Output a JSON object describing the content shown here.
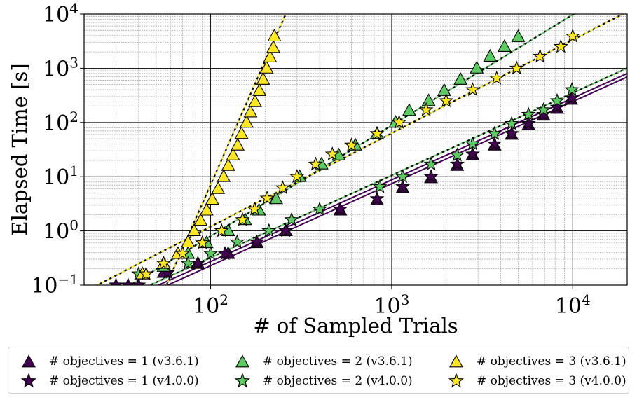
{
  "colors": {
    "obj1": "#440154",
    "obj2": "#5ec962",
    "obj3": "#fde725",
    "edge": "#000000"
  },
  "chart_data": {
    "type": "scatter",
    "x_scale": "log",
    "y_scale": "log",
    "xlabel": "# of Sampled Trials",
    "ylabel": "Elapsed Time [s]",
    "xlim": [
      20,
      20000
    ],
    "ylim": [
      0.1,
      10000
    ],
    "x_ticks": [
      {
        "value": 100,
        "base": "10",
        "exp": "2"
      },
      {
        "value": 1000,
        "base": "10",
        "exp": "3"
      },
      {
        "value": 10000,
        "base": "10",
        "exp": "4"
      }
    ],
    "y_ticks": [
      {
        "value": 0.1,
        "base": "10",
        "exp": "−1"
      },
      {
        "value": 1,
        "base": "10",
        "exp": "0"
      },
      {
        "value": 10,
        "base": "10",
        "exp": "1"
      },
      {
        "value": 100,
        "base": "10",
        "exp": "2"
      },
      {
        "value": 1000,
        "base": "10",
        "exp": "3"
      },
      {
        "value": 10000,
        "base": "10",
        "exp": "4"
      }
    ],
    "grid": true,
    "legend_position": "bottom",
    "series": [
      {
        "name": "# objectives = 1 (v3.6.1)",
        "marker": "triangle",
        "color_key": "obj1",
        "fit_line": "solid",
        "points": [
          [
            55,
            0.17
          ],
          [
            85,
            0.25
          ],
          [
            125,
            0.38
          ],
          [
            180,
            0.6
          ],
          [
            260,
            1.0
          ],
          [
            520,
            2.4
          ],
          [
            830,
            3.7
          ],
          [
            1150,
            6.2
          ],
          [
            1650,
            9.5
          ],
          [
            2300,
            16
          ],
          [
            2800,
            25
          ],
          [
            3700,
            38
          ],
          [
            4600,
            60
          ],
          [
            5700,
            90
          ],
          [
            6900,
            135
          ],
          [
            8200,
            180
          ],
          [
            9800,
            265
          ]
        ],
        "fit": [
          [
            20,
            0.02
          ],
          [
            20000,
            690
          ]
        ]
      },
      {
        "name": "# objectives = 1 (v4.0.0)",
        "marker": "star",
        "color_key": "obj1",
        "fit_line": "solid",
        "points": [
          [
            30,
            0.1
          ],
          [
            35,
            0.1
          ],
          [
            40,
            0.1
          ],
          [
            58,
            0.17
          ],
          [
            85,
            0.25
          ],
          [
            120,
            0.38
          ],
          [
            180,
            0.62
          ],
          [
            260,
            1.0
          ],
          [
            520,
            2.5
          ],
          [
            830,
            3.9
          ],
          [
            1150,
            6.5
          ],
          [
            1650,
            10
          ],
          [
            2300,
            17
          ],
          [
            2800,
            26
          ],
          [
            3700,
            40
          ],
          [
            4600,
            62
          ],
          [
            5700,
            95
          ],
          [
            6900,
            140
          ],
          [
            8200,
            190
          ],
          [
            9900,
            280
          ]
        ],
        "fit": [
          [
            20,
            0.024
          ],
          [
            20000,
            800
          ]
        ]
      },
      {
        "name": "# objectives = 2 (v3.6.1)",
        "marker": "triangle",
        "color_key": "obj2",
        "fit_line": "dashed",
        "points": [
          [
            42,
            0.16
          ],
          [
            55,
            0.22
          ],
          [
            75,
            0.38
          ],
          [
            95,
            0.6
          ],
          [
            125,
            1.0
          ],
          [
            155,
            1.6
          ],
          [
            185,
            2.4
          ],
          [
            230,
            3.9
          ],
          [
            310,
            10
          ],
          [
            410,
            17
          ],
          [
            510,
            25
          ],
          [
            630,
            38
          ],
          [
            830,
            62
          ],
          [
            1050,
            100
          ],
          [
            1250,
            165
          ],
          [
            1600,
            250
          ],
          [
            1950,
            385
          ],
          [
            2400,
            620
          ],
          [
            2950,
            1000
          ],
          [
            3500,
            1650
          ],
          [
            4200,
            2500
          ],
          [
            5000,
            3800
          ]
        ],
        "fit": [
          [
            20,
            0.03
          ],
          [
            20000,
            40000
          ]
        ]
      },
      {
        "name": "# objectives = 2 (v4.0.0)",
        "marker": "star",
        "color_key": "obj2",
        "fit_line": "dashed",
        "points": [
          [
            40,
            0.16
          ],
          [
            75,
            0.25
          ],
          [
            100,
            0.38
          ],
          [
            140,
            0.62
          ],
          [
            210,
            1.0
          ],
          [
            280,
            1.6
          ],
          [
            400,
            2.5
          ],
          [
            860,
            6.5
          ],
          [
            1150,
            10
          ],
          [
            1650,
            17
          ],
          [
            2300,
            25
          ],
          [
            2800,
            40
          ],
          [
            3700,
            62
          ],
          [
            4600,
            95
          ],
          [
            5700,
            140
          ],
          [
            6900,
            170
          ],
          [
            8200,
            250
          ],
          [
            9900,
            400
          ]
        ],
        "fit": [
          [
            20,
            0.028
          ],
          [
            20000,
            1000
          ]
        ]
      },
      {
        "name": "# objectives = 3 (v3.6.1)",
        "marker": "triangle",
        "color_key": "obj3",
        "fit_line": "dashed",
        "points": [
          [
            42,
            0.16
          ],
          [
            55,
            0.25
          ],
          [
            66,
            0.38
          ],
          [
            75,
            0.62
          ],
          [
            81,
            1.0
          ],
          [
            88,
            1.55
          ],
          [
            95,
            2.4
          ],
          [
            102,
            3.8
          ],
          [
            110,
            6.0
          ],
          [
            118,
            10
          ],
          [
            125,
            16
          ],
          [
            133,
            25
          ],
          [
            141,
            38
          ],
          [
            148,
            62
          ],
          [
            158,
            100
          ],
          [
            166,
            155
          ],
          [
            176,
            240
          ],
          [
            186,
            385
          ],
          [
            195,
            620
          ],
          [
            204,
            1000
          ],
          [
            213,
            1600
          ],
          [
            222,
            2400
          ],
          [
            225,
            3900
          ]
        ],
        "fit": [
          [
            57,
            0.1
          ],
          [
            260,
            10000
          ]
        ]
      },
      {
        "name": "# objectives = 3 (v4.0.0)",
        "marker": "star",
        "color_key": "obj3",
        "fit_line": "dashed",
        "points": [
          [
            44,
            0.16
          ],
          [
            55,
            0.25
          ],
          [
            70,
            0.38
          ],
          [
            90,
            0.6
          ],
          [
            115,
            1.0
          ],
          [
            150,
            1.6
          ],
          [
            175,
            2.5
          ],
          [
            205,
            4.0
          ],
          [
            250,
            6.2
          ],
          [
            300,
            10
          ],
          [
            380,
            17
          ],
          [
            470,
            26
          ],
          [
            600,
            38
          ],
          [
            830,
            62
          ],
          [
            1100,
            100
          ],
          [
            1550,
            170
          ],
          [
            2000,
            250
          ],
          [
            2800,
            400
          ],
          [
            3800,
            650
          ],
          [
            4900,
            1000
          ],
          [
            6600,
            1650
          ],
          [
            8600,
            2500
          ],
          [
            10000,
            3900
          ]
        ],
        "fit": [
          [
            20,
            0.075
          ],
          [
            20000,
            11000
          ]
        ]
      }
    ]
  }
}
